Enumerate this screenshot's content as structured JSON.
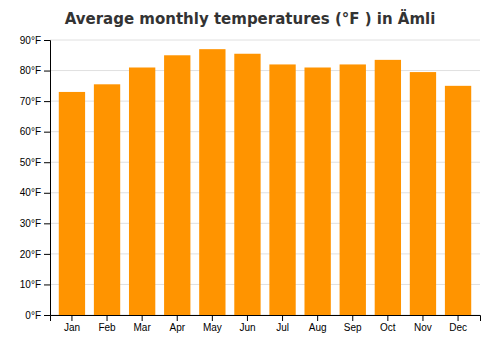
{
  "chart_data": {
    "type": "bar",
    "title": "Average monthly temperatures (°F ) in Ämli",
    "categories": [
      "Jan",
      "Feb",
      "Mar",
      "Apr",
      "May",
      "Jun",
      "Jul",
      "Aug",
      "Sep",
      "Oct",
      "Nov",
      "Dec"
    ],
    "values": [
      73,
      75.5,
      81,
      85,
      87,
      85.5,
      82,
      81,
      82,
      83.5,
      79.5,
      75
    ],
    "color": "#ff9400",
    "ylim": [
      0,
      90
    ],
    "yticks": [
      {
        "value": 0,
        "label": "0°F"
      },
      {
        "value": 10,
        "label": "10°F"
      },
      {
        "value": 20,
        "label": "20°F"
      },
      {
        "value": 30,
        "label": "30°F"
      },
      {
        "value": 40,
        "label": "40°F"
      },
      {
        "value": 50,
        "label": "50°F"
      },
      {
        "value": 60,
        "label": "60°F"
      },
      {
        "value": 70,
        "label": "70°F"
      },
      {
        "value": 80,
        "label": "80°F"
      },
      {
        "value": 90,
        "label": "90°F"
      }
    ],
    "grid": true
  }
}
